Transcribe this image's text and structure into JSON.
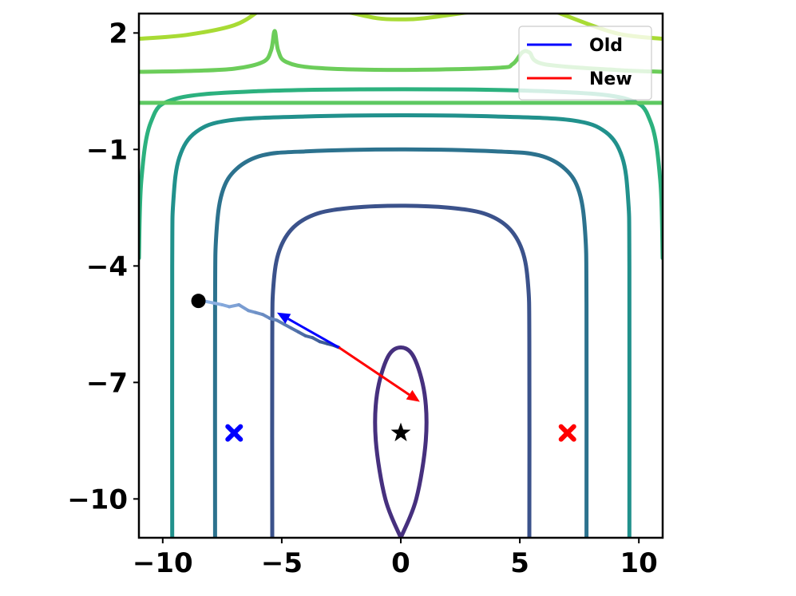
{
  "chart_data": {
    "type": "line",
    "title": "",
    "xlabel": "",
    "ylabel": "",
    "xlim": [
      -11,
      11
    ],
    "ylim": [
      -11,
      2.5
    ],
    "xticks": [
      -10,
      -5,
      0,
      5,
      10
    ],
    "yticks": [
      2,
      -1,
      -4,
      -7,
      -10
    ],
    "xtick_labels": [
      "−10",
      "−5",
      "0",
      "5",
      "10"
    ],
    "ytick_labels": [
      "2",
      "−1",
      "−4",
      "−7",
      "−10"
    ],
    "grid": false,
    "legend": {
      "placement": "top-right",
      "entries": [
        {
          "label": "Old",
          "color": "#0000ff"
        },
        {
          "label": "New",
          "color": "#ff0000"
        }
      ]
    },
    "contours": [
      {
        "name": "level-1",
        "color": "#46307e",
        "points": [
          [
            0,
            -11
          ],
          [
            -0.65,
            -10
          ],
          [
            -1.05,
            -8.5
          ],
          [
            -1.0,
            -7.3
          ],
          [
            -0.55,
            -6.35
          ],
          [
            0,
            -6.1
          ],
          [
            0.55,
            -6.35
          ],
          [
            1.0,
            -7.3
          ],
          [
            1.05,
            -8.5
          ],
          [
            0.65,
            -10
          ],
          [
            0,
            -11
          ]
        ]
      },
      {
        "name": "level-2",
        "color": "#3b528b",
        "points": [
          [
            -5.4,
            -11
          ],
          [
            -5.4,
            -6
          ],
          [
            -5.35,
            -4.5
          ],
          [
            -5.1,
            -3.6
          ],
          [
            -4.5,
            -3.0
          ],
          [
            -3.5,
            -2.65
          ],
          [
            -2,
            -2.5
          ],
          [
            0,
            -2.45
          ],
          [
            2,
            -2.5
          ],
          [
            3.5,
            -2.65
          ],
          [
            4.5,
            -3.0
          ],
          [
            5.1,
            -3.6
          ],
          [
            5.35,
            -4.5
          ],
          [
            5.4,
            -6
          ],
          [
            5.4,
            -11
          ]
        ]
      },
      {
        "name": "level-3",
        "color": "#2c728e",
        "points": [
          [
            -7.8,
            -11
          ],
          [
            -7.8,
            -5
          ],
          [
            -7.75,
            -3.2
          ],
          [
            -7.5,
            -2.1
          ],
          [
            -6.9,
            -1.5
          ],
          [
            -5.8,
            -1.15
          ],
          [
            -4,
            -1.05
          ],
          [
            0,
            -1.0
          ],
          [
            4,
            -1.05
          ],
          [
            5.8,
            -1.15
          ],
          [
            6.9,
            -1.5
          ],
          [
            7.5,
            -2.1
          ],
          [
            7.75,
            -3.2
          ],
          [
            7.8,
            -5
          ],
          [
            7.8,
            -11
          ]
        ]
      },
      {
        "name": "level-4",
        "color": "#21918c",
        "points": [
          [
            -9.6,
            -11
          ],
          [
            -9.6,
            -4
          ],
          [
            -9.55,
            -2.3
          ],
          [
            -9.3,
            -1.2
          ],
          [
            -8.6,
            -0.55
          ],
          [
            -7.2,
            -0.25
          ],
          [
            -4,
            -0.15
          ],
          [
            0,
            -0.12
          ],
          [
            4,
            -0.15
          ],
          [
            7.2,
            -0.25
          ],
          [
            8.6,
            -0.55
          ],
          [
            9.3,
            -1.2
          ],
          [
            9.55,
            -2.3
          ],
          [
            9.6,
            -4
          ],
          [
            9.6,
            -11
          ]
        ]
      },
      {
        "name": "level-5",
        "color": "#2cb17e",
        "points": [
          [
            -11,
            -3.8
          ],
          [
            -10.9,
            -1.8
          ],
          [
            -10.5,
            -0.3
          ],
          [
            -9.5,
            0.3
          ],
          [
            -6,
            0.5
          ],
          [
            0,
            0.55
          ],
          [
            6,
            0.5
          ],
          [
            9.5,
            0.3
          ],
          [
            10.5,
            -0.3
          ],
          [
            10.9,
            -1.8
          ],
          [
            11,
            -3.8
          ]
        ]
      },
      {
        "name": "level-6",
        "color": "#5ec962",
        "points": [
          [
            -11,
            0.2
          ],
          [
            -6,
            0.2
          ],
          [
            0,
            0.2
          ],
          [
            6,
            0.2
          ],
          [
            11,
            0.2
          ]
        ]
      },
      {
        "name": "level-7",
        "color": "#6ccd5a",
        "points": [
          [
            -11,
            1.0
          ],
          [
            -9,
            1.02
          ],
          [
            -7,
            1.08
          ],
          [
            -5.8,
            1.25
          ],
          [
            -5.45,
            1.55
          ],
          [
            -5.3,
            2.05
          ],
          [
            -5.15,
            1.55
          ],
          [
            -4.8,
            1.25
          ],
          [
            -3.5,
            1.1
          ],
          [
            0,
            1.05
          ],
          [
            4,
            1.1
          ],
          [
            4.7,
            1.2
          ],
          [
            5.1,
            1.5
          ],
          [
            5.4,
            1.5
          ],
          [
            6,
            1.2
          ],
          [
            9,
            1.05
          ],
          [
            11,
            1.0
          ]
        ]
      },
      {
        "name": "level-8",
        "color": "#a8db34",
        "points": [
          [
            -11,
            1.85
          ],
          [
            -9,
            1.95
          ],
          [
            -7,
            2.2
          ],
          [
            -6,
            2.55
          ]
        ]
      },
      {
        "name": "level-8b",
        "color": "#a8db34",
        "points": [
          [
            -2.3,
            2.55
          ],
          [
            -1,
            2.38
          ],
          [
            0,
            2.35
          ],
          [
            1,
            2.38
          ],
          [
            3,
            2.55
          ]
        ]
      },
      {
        "name": "level-8c",
        "color": "#a8db34",
        "points": [
          [
            6.5,
            2.55
          ],
          [
            9,
            2.0
          ],
          [
            11,
            1.85
          ]
        ]
      }
    ],
    "series": [
      {
        "name": "Old",
        "kind": "arrow",
        "color": "#0000ff",
        "x": [
          -2.6,
          -5.2
        ],
        "y": [
          -6.1,
          -5.2
        ]
      },
      {
        "name": "New",
        "kind": "arrow",
        "color": "#ff0000",
        "x": [
          -2.6,
          0.8
        ],
        "y": [
          -6.1,
          -7.5
        ]
      }
    ],
    "trajectory": {
      "color_start": "#8fb4e6",
      "color_end": "#33508c",
      "points": [
        [
          -8.3,
          -4.9
        ],
        [
          -7.9,
          -4.95
        ],
        [
          -7.5,
          -5.0
        ],
        [
          -7.2,
          -5.05
        ],
        [
          -6.8,
          -5.0
        ],
        [
          -6.4,
          -5.15
        ],
        [
          -6.1,
          -5.2
        ],
        [
          -5.8,
          -5.25
        ],
        [
          -5.5,
          -5.35
        ],
        [
          -5.2,
          -5.4
        ],
        [
          -4.9,
          -5.5
        ],
        [
          -4.6,
          -5.6
        ],
        [
          -4.3,
          -5.7
        ],
        [
          -4.0,
          -5.8
        ],
        [
          -3.7,
          -5.85
        ],
        [
          -3.4,
          -5.95
        ],
        [
          -3.1,
          -6.0
        ],
        [
          -2.8,
          -6.05
        ],
        [
          -2.6,
          -6.1
        ]
      ]
    },
    "markers": [
      {
        "name": "start-point",
        "shape": "circle",
        "color": "#000000",
        "x": -8.5,
        "y": -4.9
      },
      {
        "name": "optimum-star",
        "shape": "star",
        "color": "#000000",
        "x": 0,
        "y": -8.3
      },
      {
        "name": "old-cross",
        "shape": "x",
        "color": "#0000ff",
        "x": -7,
        "y": -8.3
      },
      {
        "name": "new-cross",
        "shape": "x",
        "color": "#ff0000",
        "x": 7,
        "y": -8.3
      }
    ]
  }
}
